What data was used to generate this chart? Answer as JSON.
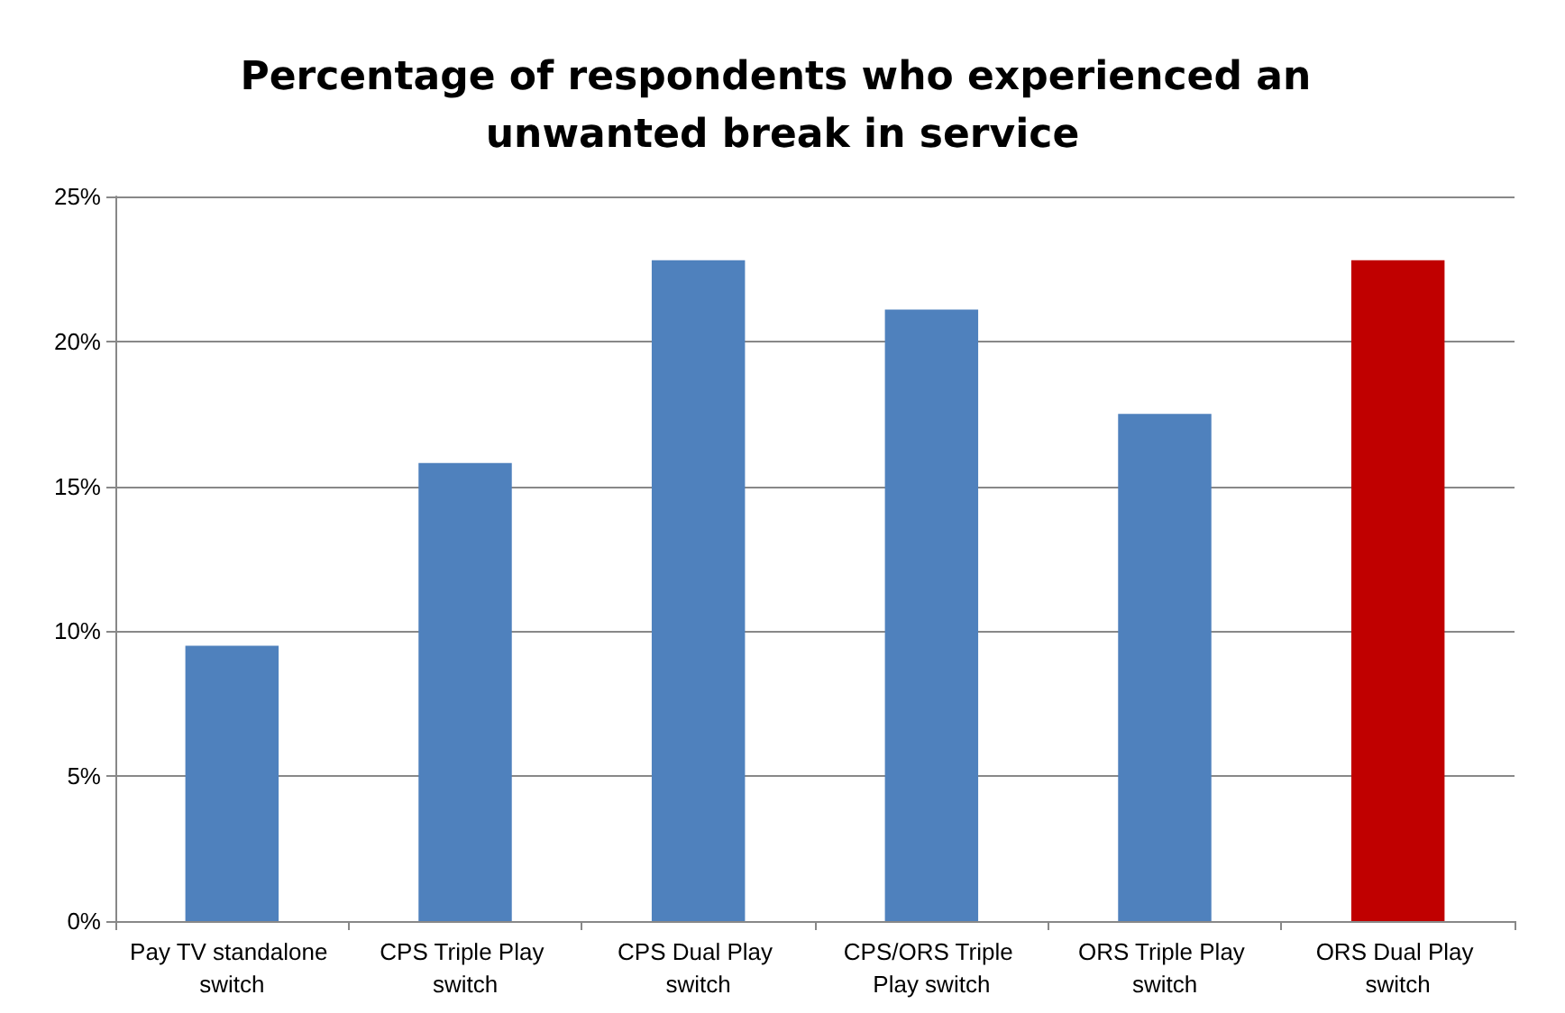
{
  "chart_data": {
    "type": "bar",
    "title": "Percentage of respondents who experienced an unwanted break in service",
    "categories": [
      "Pay TV standalone switch",
      "CPS Triple Play switch",
      "CPS Dual Play switch",
      "CPS/ORS Triple Play switch",
      "ORS Triple Play switch",
      "ORS Dual Play switch"
    ],
    "values": [
      9.5,
      15.8,
      22.8,
      21.1,
      17.5,
      22.8
    ],
    "colors": [
      "#4f81bd",
      "#4f81bd",
      "#4f81bd",
      "#4f81bd",
      "#4f81bd",
      "#c00000"
    ],
    "ylim": [
      0,
      25
    ],
    "yticks": [
      {
        "value": 0,
        "label": "0%"
      },
      {
        "value": 5,
        "label": "5%"
      },
      {
        "value": 10,
        "label": "10%"
      },
      {
        "value": 15,
        "label": "15%"
      },
      {
        "value": 20,
        "label": "20%"
      },
      {
        "value": 25,
        "label": "25%"
      }
    ],
    "grid": "y"
  }
}
